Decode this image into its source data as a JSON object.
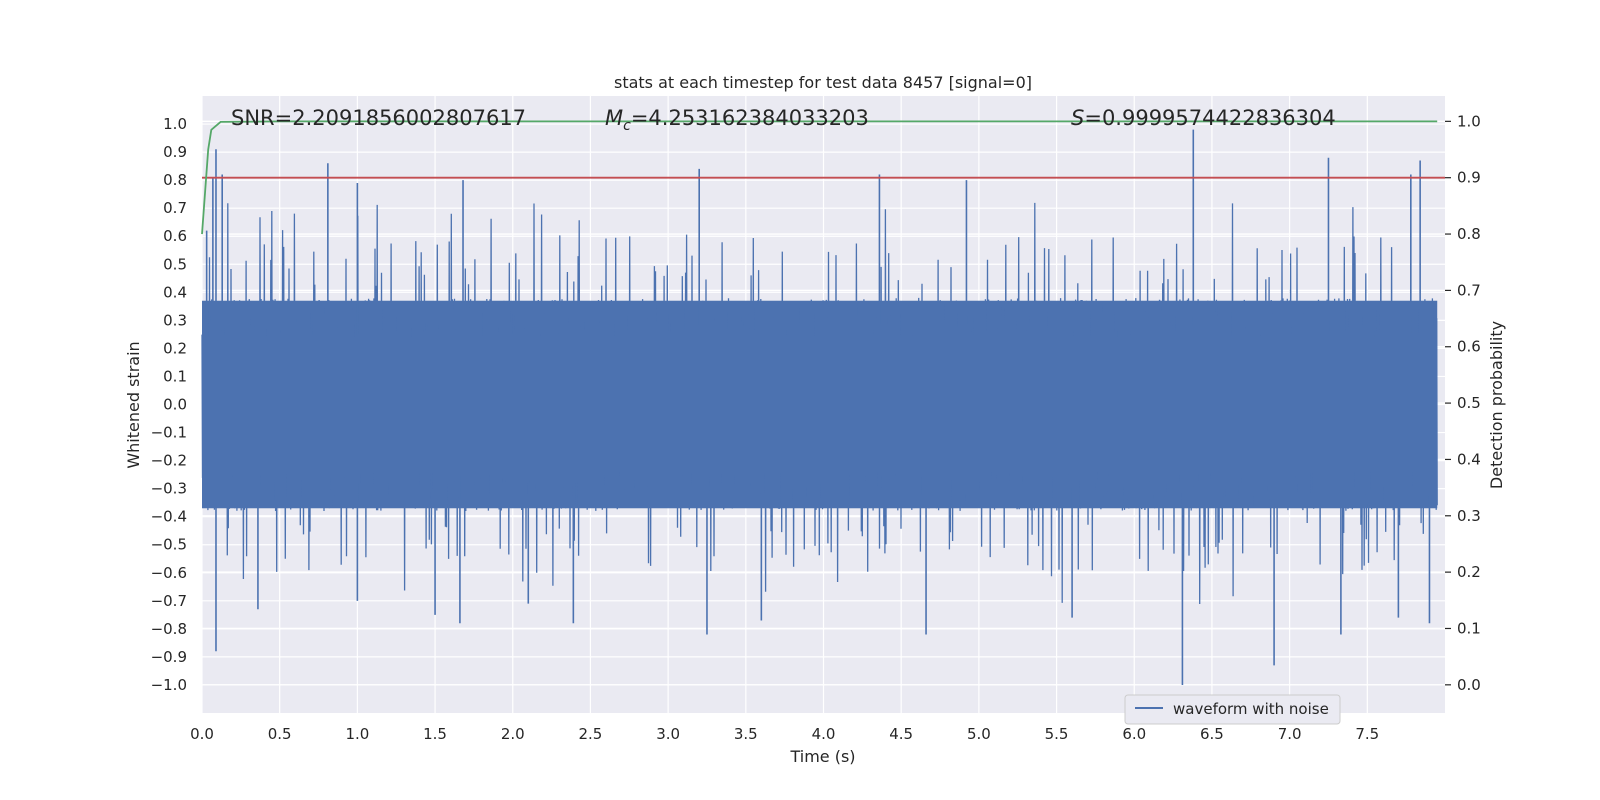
{
  "chart_data": {
    "type": "line",
    "title": "stats at each timestep for test data 8457 [signal=0]",
    "xlabel": "Time (s)",
    "ylabel_left": "Whitened strain",
    "ylabel_right": "Detection probability",
    "xlim": [
      0.0,
      8.0
    ],
    "ylim_left": [
      -1.1,
      1.1
    ],
    "ylim_right": [
      -0.05,
      1.045
    ],
    "grid": true,
    "x_ticks": [
      0.0,
      0.5,
      1.0,
      1.5,
      2.0,
      2.5,
      3.0,
      3.5,
      4.0,
      4.5,
      5.0,
      5.5,
      6.0,
      6.5,
      7.0,
      7.5
    ],
    "x_tick_labels": [
      "0.0",
      "0.5",
      "1.0",
      "1.5",
      "2.0",
      "2.5",
      "3.0",
      "3.5",
      "4.0",
      "4.5",
      "5.0",
      "5.5",
      "6.0",
      "6.5",
      "7.0",
      "7.5"
    ],
    "y_left_ticks": [
      1.0,
      0.9,
      0.8,
      0.7,
      0.6,
      0.5,
      0.4,
      0.3,
      0.2,
      0.1,
      0.0,
      -0.1,
      -0.2,
      -0.3,
      -0.4,
      -0.5,
      -0.6,
      -0.7,
      -0.8,
      -0.9,
      -1.0
    ],
    "y_left_tick_labels": [
      "1.0",
      "0.9",
      "0.8",
      "0.7",
      "0.6",
      "0.5",
      "0.4",
      "0.3",
      "0.2",
      "0.1",
      "0.0",
      "−0.1",
      "−0.2",
      "−0.3",
      "−0.4",
      "−0.5",
      "−0.6",
      "−0.7",
      "−0.8",
      "−0.9",
      "−1.0"
    ],
    "y_right_ticks": [
      1.0,
      0.9,
      0.8,
      0.7,
      0.6,
      0.5,
      0.4,
      0.3,
      0.2,
      0.1,
      0.0
    ],
    "y_right_tick_labels": [
      "1.0",
      "0.9",
      "0.8",
      "0.7",
      "0.6",
      "0.5",
      "0.4",
      "0.3",
      "0.2",
      "0.1",
      "0.0"
    ],
    "annotations": {
      "snr": "SNR=2.2091856002807617",
      "mc_symbol": "M",
      "mc_subscript": "c",
      "mc_value": "=4.253162384033203",
      "s_symbol": "S",
      "s_value": "=0.9999574422836304"
    },
    "legend": {
      "position": "lower-right",
      "label": "waveform with noise"
    },
    "series": [
      {
        "name": "waveform with noise",
        "axis": "left",
        "color": "#4c72b0",
        "description": "dense noise-dominated whitened strain, envelope roughly +/-0.4, spikes up to ~0.98 and down to ~-1.0",
        "spikes": [
          {
            "x": 0.03,
            "y": 0.62
          },
          {
            "x": 0.07,
            "y": 0.81
          },
          {
            "x": 0.09,
            "y": 0.91
          },
          {
            "x": 0.09,
            "y": -0.88
          },
          {
            "x": 0.13,
            "y": 0.82
          },
          {
            "x": 0.36,
            "y": -0.73
          },
          {
            "x": 0.81,
            "y": 0.86
          },
          {
            "x": 1.0,
            "y": 0.79
          },
          {
            "x": 1.0,
            "y": -0.7
          },
          {
            "x": 1.5,
            "y": -0.75
          },
          {
            "x": 1.68,
            "y": 0.8
          },
          {
            "x": 1.66,
            "y": -0.78
          },
          {
            "x": 2.1,
            "y": -0.71
          },
          {
            "x": 2.39,
            "y": -0.78
          },
          {
            "x": 3.2,
            "y": 0.84
          },
          {
            "x": 3.25,
            "y": -0.82
          },
          {
            "x": 3.6,
            "y": -0.77
          },
          {
            "x": 4.36,
            "y": 0.82
          },
          {
            "x": 4.66,
            "y": -0.82
          },
          {
            "x": 4.92,
            "y": 0.8
          },
          {
            "x": 5.6,
            "y": -0.76
          },
          {
            "x": 6.31,
            "y": -1.0
          },
          {
            "x": 6.38,
            "y": 0.98
          },
          {
            "x": 6.9,
            "y": -0.93
          },
          {
            "x": 7.25,
            "y": 0.88
          },
          {
            "x": 7.33,
            "y": -0.82
          },
          {
            "x": 7.78,
            "y": 0.82
          },
          {
            "x": 7.84,
            "y": 0.87
          },
          {
            "x": 7.7,
            "y": -0.76
          },
          {
            "x": 7.9,
            "y": -0.78
          }
        ]
      },
      {
        "name": "detection probability",
        "axis": "right",
        "color": "#55a868",
        "x": [
          0.0,
          0.04,
          0.06,
          0.12,
          0.5,
          1.0,
          2.0,
          3.0,
          4.0,
          5.0,
          6.0,
          7.0,
          7.95
        ],
        "values": [
          0.8,
          0.95,
          0.985,
          0.999,
          1.0,
          1.0,
          1.0,
          1.0,
          1.0,
          1.0,
          1.0,
          1.0,
          1.0
        ]
      },
      {
        "name": "threshold",
        "axis": "right",
        "color": "#c44e52",
        "x": [
          0.0,
          8.0
        ],
        "values": [
          0.9,
          0.9
        ]
      }
    ]
  }
}
